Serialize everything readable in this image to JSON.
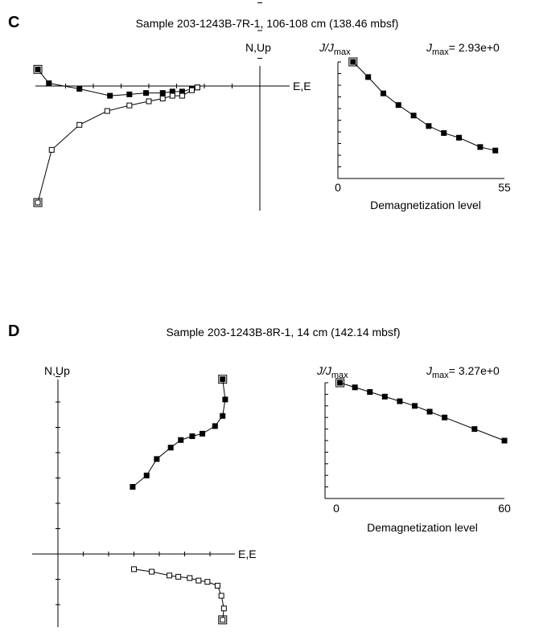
{
  "panels": [
    {
      "letter": "C",
      "title": "Sample 203-1243B-7R-1, 106-108 cm (138.46 mbsf)",
      "zijderveld": {
        "vertical_axis_label": "N,Up",
        "horizontal_axis_label": "E,E",
        "horizontal_projection": [
          [
            -8.0,
            0.6
          ],
          [
            -7.6,
            0.1
          ],
          [
            -6.5,
            -0.1
          ],
          [
            -5.4,
            -0.35
          ],
          [
            -4.7,
            -0.3
          ],
          [
            -4.1,
            -0.25
          ],
          [
            -3.5,
            -0.25
          ],
          [
            -3.15,
            -0.2
          ],
          [
            -2.8,
            -0.2
          ],
          [
            -2.45,
            -0.1
          ],
          [
            -2.25,
            -0.05
          ]
        ],
        "vertical_projection": [
          [
            -8.0,
            -4.2
          ],
          [
            -7.5,
            -2.3
          ],
          [
            -6.5,
            -1.4
          ],
          [
            -5.5,
            -0.9
          ],
          [
            -4.7,
            -0.7
          ],
          [
            -4.0,
            -0.55
          ],
          [
            -3.5,
            -0.45
          ],
          [
            -3.15,
            -0.35
          ],
          [
            -2.8,
            -0.35
          ],
          [
            -2.45,
            -0.15
          ],
          [
            -2.25,
            -0.05
          ]
        ]
      },
      "chart_data": {
        "type": "line",
        "ylabel_main": "J/J",
        "ylabel_sub": "max",
        "jmax_label_main": "J",
        "jmax_label_sub": "max",
        "jmax_value": "= 2.93e+0",
        "xlabel": "Demagnetization level",
        "xlim": [
          0,
          55
        ],
        "ylim": [
          0,
          1
        ],
        "x_ticks": [
          "0",
          "55"
        ],
        "x": [
          5,
          10,
          15,
          20,
          25,
          30,
          35,
          40,
          47,
          52
        ],
        "values": [
          1.0,
          0.87,
          0.73,
          0.63,
          0.54,
          0.45,
          0.39,
          0.35,
          0.27,
          0.24
        ]
      }
    },
    {
      "letter": "D",
      "title": "Sample 203-1243B-8R-1, 14 cm (142.14 mbsf)",
      "zijderveld": {
        "vertical_axis_label": "N,Up",
        "horizontal_axis_label": "E,E",
        "horizontal_projection": [
          [
            6.5,
            6.9
          ],
          [
            6.6,
            6.1
          ],
          [
            6.5,
            5.45
          ],
          [
            6.2,
            5.05
          ],
          [
            5.7,
            4.75
          ],
          [
            5.3,
            4.65
          ],
          [
            4.85,
            4.5
          ],
          [
            4.45,
            4.2
          ],
          [
            3.9,
            3.75
          ],
          [
            3.5,
            3.1
          ],
          [
            2.95,
            2.65
          ]
        ],
        "vertical_projection": [
          [
            6.5,
            -2.6
          ],
          [
            6.55,
            -2.15
          ],
          [
            6.45,
            -1.65
          ],
          [
            6.3,
            -1.25
          ],
          [
            5.9,
            -1.1
          ],
          [
            5.55,
            -1.05
          ],
          [
            5.2,
            -0.95
          ],
          [
            4.75,
            -0.9
          ],
          [
            4.4,
            -0.85
          ],
          [
            3.7,
            -0.7
          ],
          [
            3.0,
            -0.6
          ]
        ]
      },
      "chart_data": {
        "type": "line",
        "ylabel_main": "J/J",
        "ylabel_sub": "max",
        "jmax_label_main": "J",
        "jmax_label_sub": "max",
        "jmax_value": "= 3.27e+0",
        "xlabel": "Demagnetization level",
        "xlim": [
          0,
          60
        ],
        "ylim": [
          0,
          1
        ],
        "x_ticks": [
          "0",
          "60"
        ],
        "x": [
          5,
          10,
          15,
          20,
          25,
          30,
          35,
          40,
          50,
          60
        ],
        "values": [
          1.0,
          0.96,
          0.92,
          0.88,
          0.84,
          0.8,
          0.75,
          0.7,
          0.6,
          0.5
        ]
      }
    }
  ]
}
